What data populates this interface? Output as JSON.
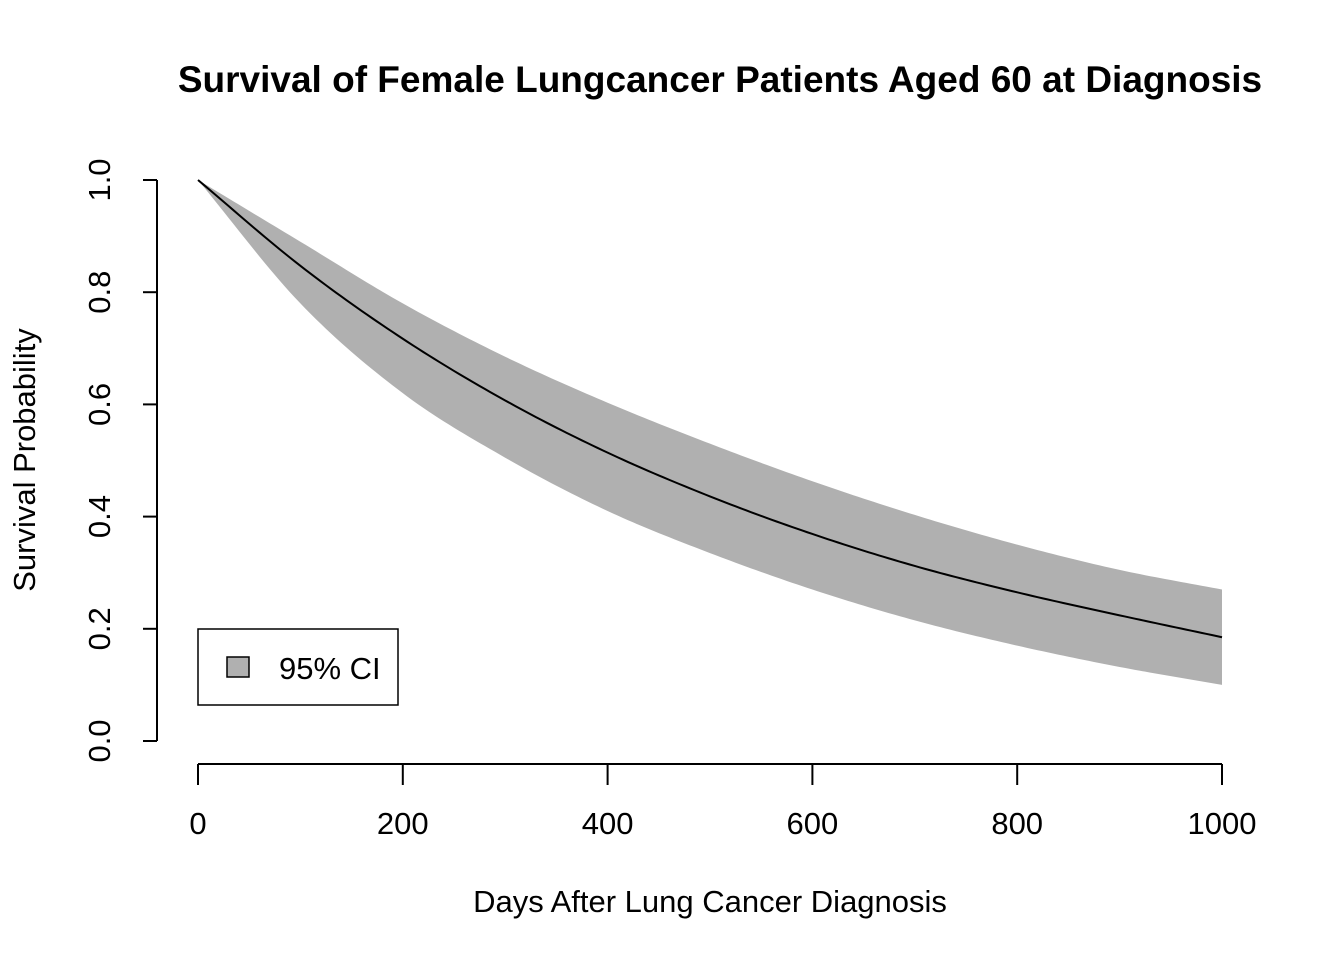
{
  "chart_data": {
    "type": "area",
    "title": "Survival of Female Lungcancer Patients Aged 60 at Diagnosis",
    "xlabel": "Days After Lung Cancer Diagnosis",
    "ylabel": "Survival Probability",
    "xlim": [
      0,
      1000
    ],
    "ylim": [
      0,
      1
    ],
    "x_ticks": [
      0,
      200,
      400,
      600,
      800,
      1000
    ],
    "x_tick_labels": [
      "0",
      "200",
      "400",
      "600",
      "800",
      "1000"
    ],
    "y_ticks": [
      0,
      0.2,
      0.4,
      0.6,
      0.8,
      1.0
    ],
    "y_tick_labels": [
      "0.0",
      "0.2",
      "0.4",
      "0.6",
      "0.8",
      "1.0"
    ],
    "grid": false,
    "legend": {
      "placement": "bottom-left",
      "entries": [
        {
          "label": "95% CI",
          "color": "#b0b0b0"
        }
      ]
    },
    "colors": {
      "band": "#b0b0b0",
      "line": "#000000"
    },
    "x": [
      0,
      100,
      200,
      300,
      400,
      500,
      600,
      700,
      800,
      900,
      1000
    ],
    "series": [
      {
        "role": "estimate",
        "values": [
          1.0,
          0.847,
          0.717,
          0.607,
          0.514,
          0.436,
          0.369,
          0.312,
          0.265,
          0.224,
          0.185
        ]
      },
      {
        "role": "ci_upper",
        "values": [
          1.0,
          0.89,
          0.78,
          0.685,
          0.603,
          0.53,
          0.463,
          0.403,
          0.35,
          0.305,
          0.27
        ]
      },
      {
        "role": "ci_lower",
        "values": [
          1.0,
          0.78,
          0.62,
          0.505,
          0.41,
          0.335,
          0.27,
          0.215,
          0.17,
          0.132,
          0.1
        ]
      }
    ]
  }
}
